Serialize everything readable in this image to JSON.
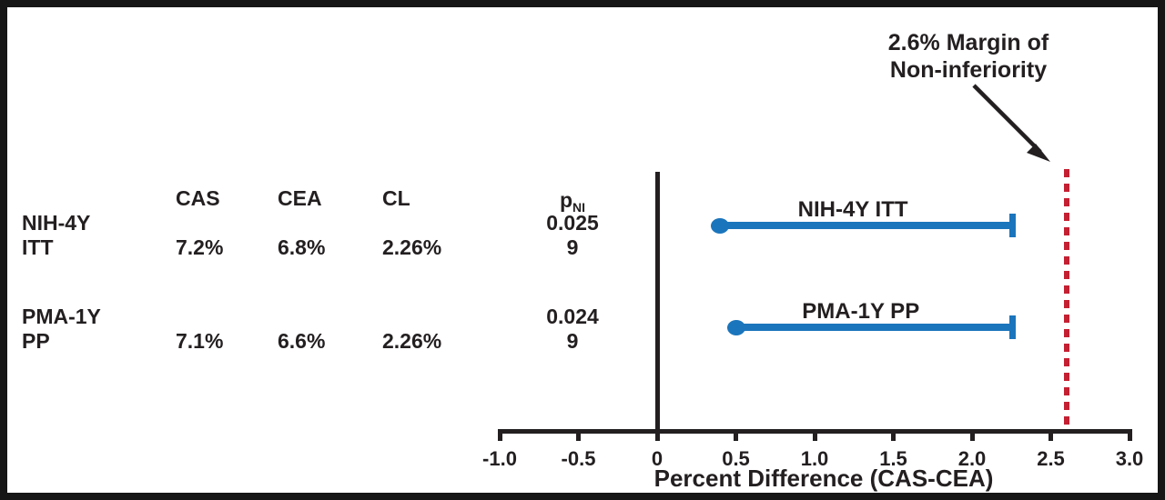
{
  "figure": {
    "annotation": {
      "line1": "2.6% Margin of",
      "line2": "Non-inferiority"
    },
    "table": {
      "headers": {
        "cas": "CAS",
        "cea": "CEA",
        "cl": "CL",
        "p_base": "p",
        "p_sub": "NI"
      },
      "rows": [
        {
          "label_line1": "NIH-4Y",
          "label_line2": "ITT",
          "cas": "7.2%",
          "cea": "6.8%",
          "cl": "2.26%",
          "p_line1": "0.025",
          "p_line2": "9"
        },
        {
          "label_line1": "PMA-1Y",
          "label_line2": "PP",
          "cas": "7.1%",
          "cea": "6.6%",
          "cl": "2.26%",
          "p_line1": "0.024",
          "p_line2": "9"
        }
      ]
    }
  },
  "chart_data": {
    "type": "scatter",
    "subtype": "non-inferiority interval plot",
    "title": "",
    "xlabel": "Percent Difference (CAS-CEA)",
    "ylabel": "",
    "xlim": [
      -1.0,
      3.0
    ],
    "x_ticks": [
      -1.0,
      -0.5,
      0,
      0.5,
      1.0,
      1.5,
      2.0,
      2.5,
      3.0
    ],
    "x_tick_labels": [
      "-1.0",
      "-0.5",
      "0",
      "0.5",
      "1.0",
      "1.5",
      "2.0",
      "2.5",
      "3.0"
    ],
    "zero_line": true,
    "grid": false,
    "series": [
      {
        "name": "NIH-4Y ITT",
        "point": 0.4,
        "upper_cl": 2.26
      },
      {
        "name": "PMA-1Y PP",
        "point": 0.5,
        "upper_cl": 2.26
      }
    ],
    "margin_line": {
      "value": 2.6,
      "label": "2.6% Margin of Non-inferiority",
      "style": "dashed"
    },
    "table": {
      "columns": [
        "CAS",
        "CEA",
        "CL",
        "pNI"
      ],
      "rows": [
        {
          "label": "NIH-4Y ITT",
          "CAS": "7.2%",
          "CEA": "6.8%",
          "CL": "2.26%",
          "pNI": "0.0259"
        },
        {
          "label": "PMA-1Y PP",
          "CAS": "7.1%",
          "CEA": "6.6%",
          "CL": "2.26%",
          "pNI": "0.0249"
        }
      ]
    },
    "colors": {
      "series": "#1B75BC",
      "margin": "#C42032",
      "text": "#231F20"
    }
  }
}
